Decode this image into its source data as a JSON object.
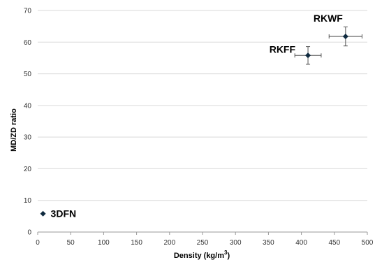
{
  "chart_data": {
    "type": "scatter",
    "title": "",
    "xlabel": "Density (kg/m",
    "xlabel_superscript": "3",
    "xlabel_suffix": ")",
    "ylabel": "MD/ZD ratio",
    "xlim": [
      0,
      500
    ],
    "ylim": [
      0,
      70
    ],
    "xticks": [
      "0",
      "50",
      "100",
      "150",
      "200",
      "250",
      "300",
      "350",
      "400",
      "450",
      "500"
    ],
    "yticks": [
      "0",
      "10",
      "20",
      "30",
      "40",
      "50",
      "60",
      "70"
    ],
    "grid": "horizontal",
    "marker_color": "#0f2a3f",
    "points": [
      {
        "label": "3DFN",
        "x": 8,
        "y": 5.8,
        "xerr": 0,
        "yerr": 0
      },
      {
        "label": "RKFF",
        "x": 410,
        "y": 55.8,
        "xerr": 20,
        "yerr": 2.8
      },
      {
        "label": "RKWF",
        "x": 467,
        "y": 61.8,
        "xerr": 25,
        "yerr": 3
      }
    ]
  }
}
